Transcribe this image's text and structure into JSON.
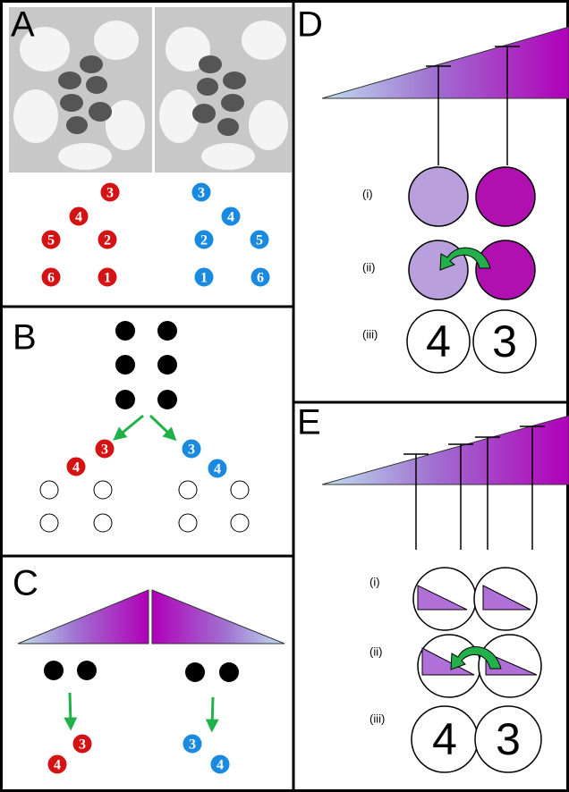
{
  "panel_a": {
    "label": "A",
    "red": [
      "3",
      "4",
      "2",
      "5",
      "1",
      "6"
    ],
    "blue": [
      "3",
      "4",
      "2",
      "5",
      "1",
      "6"
    ]
  },
  "panel_b": {
    "label": "B",
    "red": [
      "3",
      "4"
    ],
    "blue": [
      "3",
      "4"
    ]
  },
  "panel_c": {
    "label": "C",
    "red": [
      "3",
      "4"
    ],
    "blue": [
      "3",
      "4"
    ]
  },
  "panel_d": {
    "label": "D",
    "rows": [
      "(i)",
      "(ii)",
      "(iii)"
    ],
    "numbers": [
      "4",
      "3"
    ]
  },
  "panel_e": {
    "label": "E",
    "rows": [
      "(i)",
      "(ii)",
      "(iii)"
    ],
    "numbers": [
      "4",
      "3"
    ]
  }
}
